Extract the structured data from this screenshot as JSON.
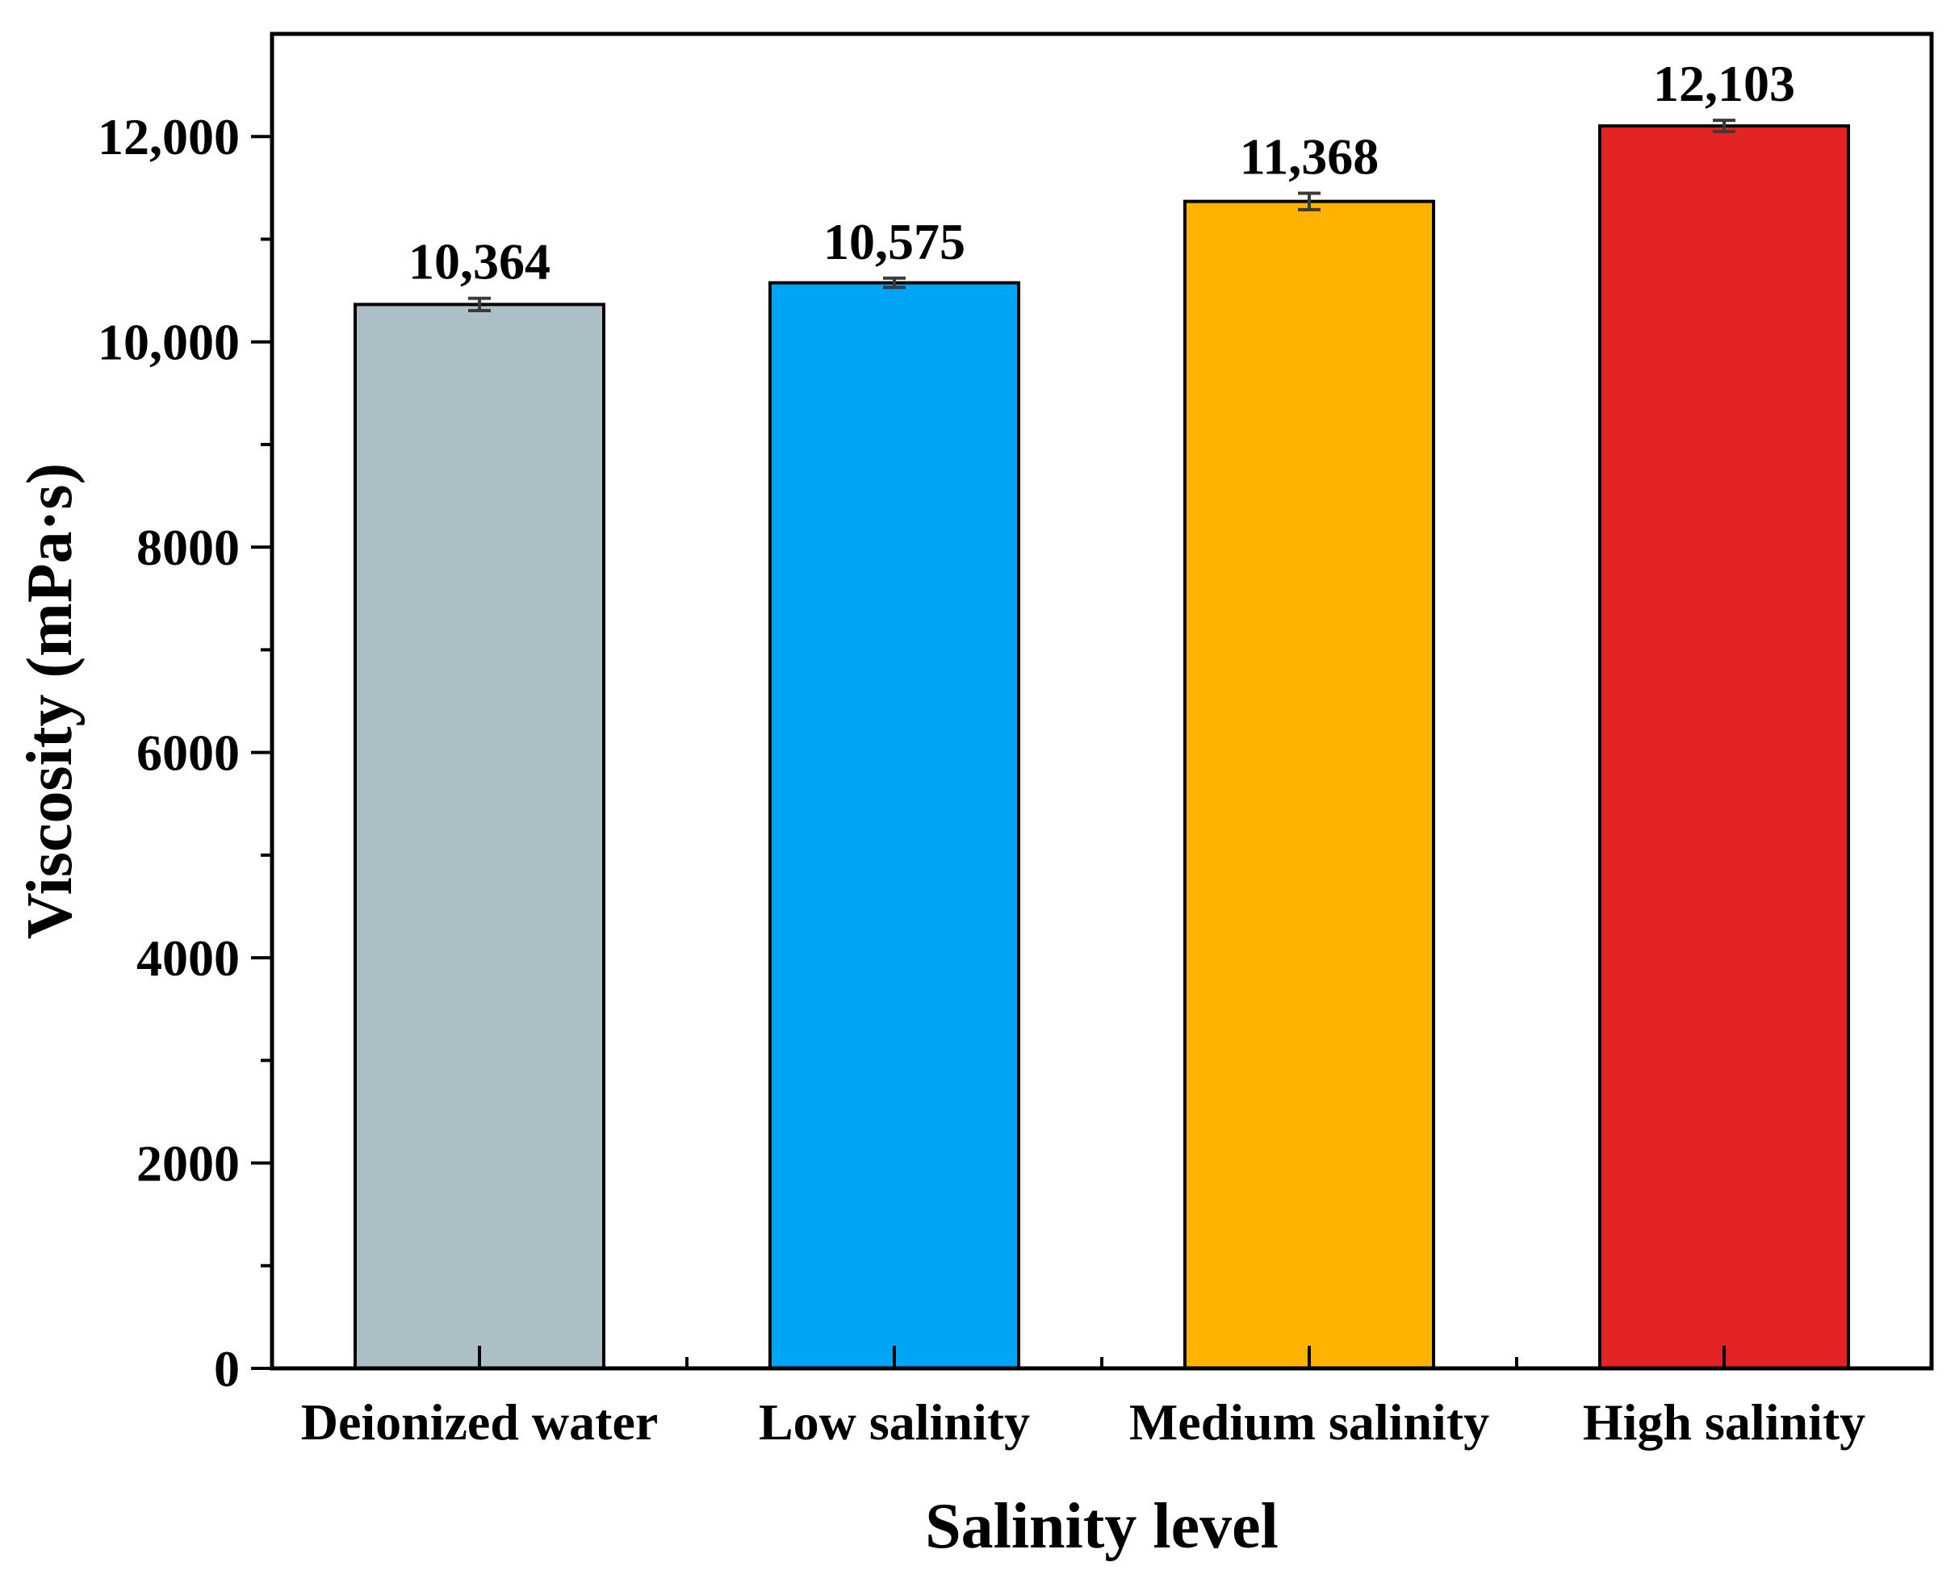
{
  "chart_data": {
    "type": "bar",
    "title": "",
    "xlabel": "Salinity level",
    "ylabel": "Viscosity (mPa·s)",
    "ylim": [
      0,
      13000
    ],
    "yticks": [
      0,
      2000,
      4000,
      6000,
      8000,
      10000,
      12000
    ],
    "ytick_labels": [
      "0",
      "2000",
      "4000",
      "6000",
      "8000",
      "10,000",
      "12,000"
    ],
    "categories": [
      "Deionized water",
      "Low salinity",
      "Medium salinity",
      "High salinity"
    ],
    "values": [
      10364,
      10575,
      11368,
      12103
    ],
    "value_labels": [
      "10,364",
      "10,575",
      "11,368",
      "12,103"
    ],
    "errors": [
      60,
      45,
      80,
      55
    ],
    "colors": [
      "#adbfc6",
      "#00a5f5",
      "#ffb300",
      "#e32424"
    ],
    "grid": false
  }
}
